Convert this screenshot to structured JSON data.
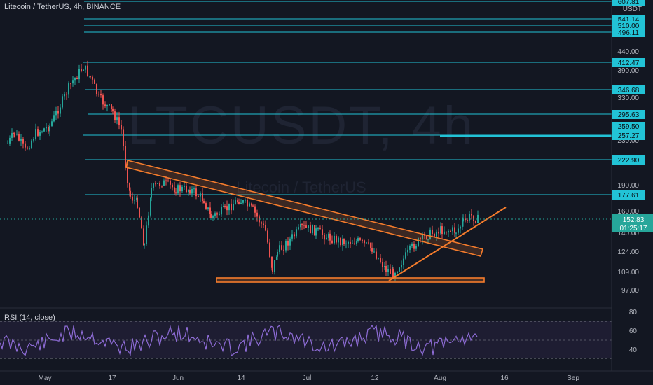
{
  "header": {
    "symbol_title": "Litecoin / TetherUS, 4h, BINANCE",
    "currency": "USDT"
  },
  "watermark": {
    "ticker": "LTCUSDT, 4h",
    "name": "Litecoin / TetherUS"
  },
  "rsi": {
    "label": "RSI (14, close)",
    "levels": [
      80,
      60,
      40
    ],
    "upper": 70,
    "mid": 50,
    "lower": 30
  },
  "price_axis": {
    "ticks": [
      "440.00",
      "390.00",
      "330.00",
      "230.00",
      "190.00",
      "160.00",
      "140.00",
      "124.00",
      "109.00",
      "97.00"
    ]
  },
  "time_axis": {
    "ticks": [
      "May",
      "17",
      "Jun",
      "14",
      "Jul",
      "12",
      "Aug",
      "16",
      "Sep"
    ]
  },
  "last_price": {
    "value": "152.83",
    "countdown": "01:25:17"
  },
  "levels": [
    {
      "label": "607.81"
    },
    {
      "label": "541.14"
    },
    {
      "label": "510.00"
    },
    {
      "label": "496.11"
    },
    {
      "label": "412.47"
    },
    {
      "label": "346.68"
    },
    {
      "label": "295.63"
    },
    {
      "label": "259.50"
    },
    {
      "label": "257.27"
    },
    {
      "label": "222.90"
    },
    {
      "label": "177.61"
    }
  ],
  "colors": {
    "background": "#131722",
    "level_line": "#22c3d6",
    "level_label_bg": "#22c3d6",
    "trend": "#f57c2c",
    "up": "#26a69a",
    "down": "#ef5350",
    "rsi": "#8e6cd6",
    "last_price": "#26a69a"
  }
}
